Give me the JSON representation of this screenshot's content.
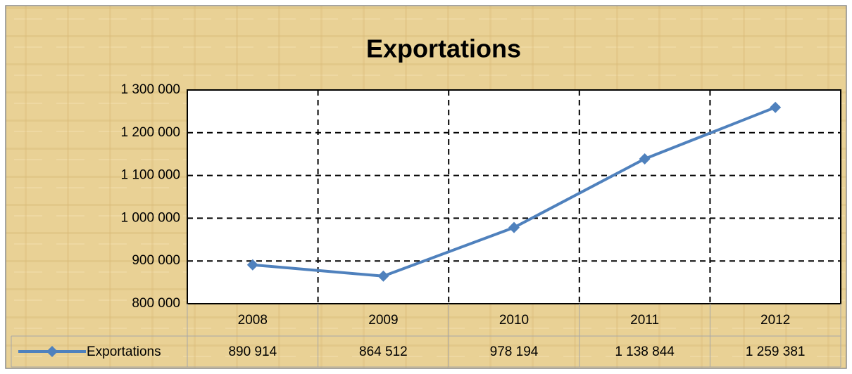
{
  "chart_data": {
    "type": "line",
    "title": "Exportations",
    "categories": [
      "2008",
      "2009",
      "2010",
      "2011",
      "2012"
    ],
    "series": [
      {
        "name": "Exportations",
        "color": "#4f81bd",
        "values": [
          890914,
          864512,
          978194,
          1138844,
          1259381
        ],
        "value_labels": [
          "890 914",
          "864 512",
          "978 194",
          "1 138 844",
          "1 259 381"
        ]
      }
    ],
    "ylim": [
      800000,
      1300000
    ],
    "yticks": [
      {
        "value": 800000,
        "label": "800 000"
      },
      {
        "value": 900000,
        "label": "900 000"
      },
      {
        "value": 1000000,
        "label": "1 000 000"
      },
      {
        "value": 1100000,
        "label": "1 100 000"
      },
      {
        "value": 1200000,
        "label": "1 200 000"
      },
      {
        "value": 1300000,
        "label": "1 300 000"
      }
    ],
    "grid": true
  }
}
